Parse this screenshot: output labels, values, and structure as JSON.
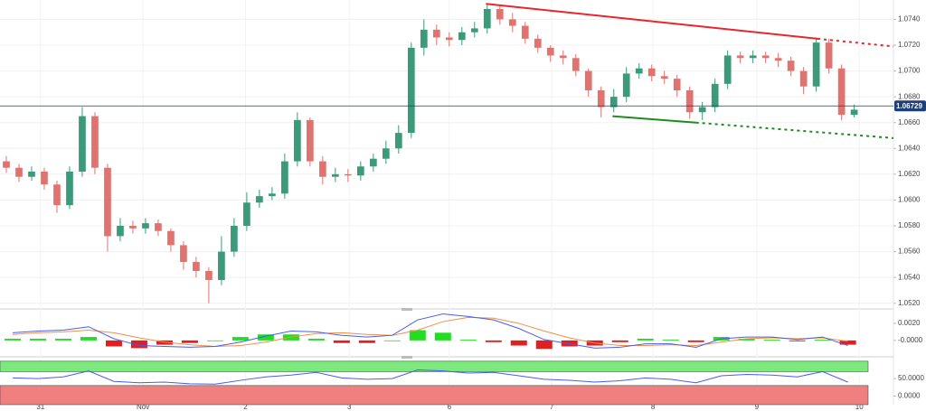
{
  "chart_data": [
    {
      "type": "candlestick",
      "x": [
        0.5,
        1.5,
        2.5,
        3.5,
        4.5,
        5.5,
        6.5,
        7.5,
        8.5,
        9.5,
        10.5,
        11.5,
        12.5,
        13.5,
        14.5,
        15.5,
        16.5,
        17.5,
        18.5,
        19.5,
        20.5,
        21.5,
        22.5,
        23.5,
        24.5,
        25.5,
        26.5,
        27.5,
        28.5,
        29.5,
        30.5,
        31.5,
        32.5,
        33.5,
        34.5,
        35.5,
        36.5,
        37.5,
        38.5,
        39.5,
        40.5,
        41.5,
        42.5,
        43.5,
        44.5,
        45.5,
        46.5,
        47.5,
        48.5,
        49.5,
        50.5,
        51.5,
        52.5,
        53.5,
        54.5,
        55.5,
        56.5,
        57.5,
        58.5,
        59.5,
        60.5,
        61.5,
        62.5,
        63.5,
        64.5,
        65.5,
        66.5,
        67.5
      ],
      "open": [
        1.063,
        1.0625,
        1.0618,
        1.0622,
        1.0612,
        1.0596,
        1.0622,
        1.0665,
        1.0625,
        1.0572,
        1.058,
        1.0578,
        1.0582,
        1.0576,
        1.0565,
        1.0552,
        1.0545,
        1.0538,
        1.056,
        1.058,
        1.0598,
        1.0603,
        1.0605,
        1.063,
        1.0662,
        1.063,
        1.0618,
        1.062,
        1.0619,
        1.0626,
        1.0632,
        1.064,
        1.0652,
        1.0718,
        1.0732,
        1.0726,
        1.0724,
        1.073,
        1.0733,
        1.0748,
        1.074,
        1.0735,
        1.0725,
        1.0718,
        1.0712,
        1.071,
        1.07,
        1.0685,
        1.0672,
        1.068,
        1.0698,
        1.0702,
        1.0696,
        1.0694,
        1.0685,
        1.0668,
        1.0672,
        1.069,
        1.0712,
        1.071,
        1.0712,
        1.071,
        1.0708,
        1.07,
        1.0688,
        1.0722,
        1.0702,
        1.0666
      ],
      "high": [
        1.0634,
        1.0628,
        1.0626,
        1.0625,
        1.0615,
        1.0626,
        1.0672,
        1.0668,
        1.0628,
        1.0586,
        1.0584,
        1.0586,
        1.0585,
        1.0578,
        1.0568,
        1.0556,
        1.0548,
        1.0572,
        1.0586,
        1.0606,
        1.0608,
        1.061,
        1.0636,
        1.0668,
        1.0664,
        1.0634,
        1.0625,
        1.0624,
        1.063,
        1.0636,
        1.0646,
        1.0658,
        1.0722,
        1.074,
        1.0736,
        1.073,
        1.0734,
        1.0738,
        1.0752,
        1.0751,
        1.0745,
        1.0738,
        1.0728,
        1.072,
        1.0716,
        1.0713,
        1.0702,
        1.0688,
        1.0686,
        1.0703,
        1.0706,
        1.0705,
        1.07,
        1.0697,
        1.0688,
        1.0676,
        1.0694,
        1.0716,
        1.0715,
        1.0716,
        1.0715,
        1.0714,
        1.0711,
        1.0703,
        1.0726,
        1.0725,
        1.0705,
        1.0674
      ],
      "low": [
        1.0621,
        1.0614,
        1.0615,
        1.0608,
        1.059,
        1.0593,
        1.0618,
        1.062,
        1.056,
        1.0568,
        1.0574,
        1.0574,
        1.0572,
        1.056,
        1.0546,
        1.054,
        1.052,
        1.0534,
        1.0556,
        1.0576,
        1.0594,
        1.06,
        1.0601,
        1.0626,
        1.0626,
        1.0612,
        1.0614,
        1.0614,
        1.0615,
        1.0622,
        1.0628,
        1.0636,
        1.0648,
        1.0712,
        1.072,
        1.0719,
        1.072,
        1.0726,
        1.0729,
        1.0736,
        1.073,
        1.0721,
        1.0714,
        1.0707,
        1.0705,
        1.0696,
        1.068,
        1.0664,
        1.0668,
        1.0676,
        1.0694,
        1.0692,
        1.069,
        1.068,
        1.0663,
        1.0662,
        1.0668,
        1.0686,
        1.0706,
        1.0706,
        1.0706,
        1.0703,
        1.0696,
        1.0682,
        1.0684,
        1.0698,
        1.0662,
        1.0664
      ],
      "close": [
        1.0625,
        1.0618,
        1.0622,
        1.0612,
        1.0596,
        1.0622,
        1.0665,
        1.0625,
        1.0572,
        1.058,
        1.0578,
        1.0582,
        1.0576,
        1.0565,
        1.0552,
        1.0545,
        1.0538,
        1.056,
        1.058,
        1.0598,
        1.0603,
        1.0605,
        1.063,
        1.0662,
        1.063,
        1.0618,
        1.062,
        1.0619,
        1.0626,
        1.0632,
        1.064,
        1.0652,
        1.0718,
        1.0732,
        1.0726,
        1.0724,
        1.073,
        1.0733,
        1.0748,
        1.074,
        1.0735,
        1.0725,
        1.0718,
        1.0712,
        1.071,
        1.07,
        1.0685,
        1.0672,
        1.068,
        1.0698,
        1.0702,
        1.0696,
        1.0694,
        1.0685,
        1.0668,
        1.0672,
        1.069,
        1.0712,
        1.071,
        1.0712,
        1.071,
        1.0708,
        1.07,
        1.0688,
        1.0722,
        1.0702,
        1.0666,
        1.067
      ],
      "up_color": "#3a9a7a",
      "down_color": "#e0736f",
      "xlim": [
        0,
        70.6
      ],
      "xticks": [
        {
          "value": 3.2,
          "label": "31"
        },
        {
          "value": 11.3,
          "label": "Nov"
        },
        {
          "value": 19.4,
          "label": "2"
        },
        {
          "value": 27.6,
          "label": "3"
        },
        {
          "value": 35.5,
          "label": "6"
        },
        {
          "value": 43.6,
          "label": "7"
        },
        {
          "value": 51.6,
          "label": "8"
        },
        {
          "value": 59.8,
          "label": "9"
        },
        {
          "value": 67.9,
          "label": "10"
        }
      ],
      "ylim": [
        1.0517,
        1.0755
      ],
      "yticks": [
        {
          "value": 1.074,
          "label": "1.0740"
        },
        {
          "value": 1.072,
          "label": "1.0720"
        },
        {
          "value": 1.07,
          "label": "1.0700"
        },
        {
          "value": 1.068,
          "label": "1.0680"
        },
        {
          "value": 1.066,
          "label": "1.0660"
        },
        {
          "value": 1.064,
          "label": "1.0640"
        },
        {
          "value": 1.062,
          "label": "1.0620"
        },
        {
          "value": 1.06,
          "label": "1.0600"
        },
        {
          "value": 1.058,
          "label": "1.0580"
        },
        {
          "value": 1.056,
          "label": "1.0560"
        },
        {
          "value": 1.054,
          "label": "1.0540"
        },
        {
          "value": 1.052,
          "label": "1.0520"
        }
      ],
      "last_price": 1.06729,
      "last_price_color": "#1f3f7a",
      "trendlines": [
        {
          "color": "#e8262b",
          "x": [
            38.4,
            64.6,
            70.6
          ],
          "y": [
            1.0752,
            1.0725,
            1.0719
          ]
        },
        {
          "color": "#1f8a1f",
          "x": [
            48.4,
            55.0,
            70.6
          ],
          "y": [
            1.0665,
            1.066,
            1.0648
          ]
        }
      ],
      "grid": true
    },
    {
      "type": "macd",
      "x": [
        1,
        3,
        5,
        7,
        9,
        11,
        13,
        15,
        17,
        19,
        21,
        23,
        25,
        27,
        29,
        31,
        33,
        35,
        37,
        39,
        41,
        43,
        45,
        47,
        49,
        51,
        53,
        55,
        57,
        59,
        61,
        63,
        65,
        67
      ],
      "macd": [
        0.0009,
        0.0011,
        0.0012,
        0.0016,
        0.0002,
        -0.0006,
        -0.0007,
        -0.0008,
        -0.0007,
        -0.0002,
        0.0005,
        0.0011,
        0.001,
        0.0006,
        0.0004,
        0.0006,
        0.0024,
        0.0031,
        0.0028,
        0.0024,
        0.0014,
        0.0001,
        -0.0004,
        -0.0009,
        -0.0008,
        -0.0004,
        -0.0004,
        -0.0008,
        0.0002,
        0.0004,
        0.0004,
        0.0001,
        0.0004,
        -0.0006
      ],
      "signal": [
        0.0007,
        0.0009,
        0.001,
        0.0012,
        0.0009,
        0.0003,
        -0.0002,
        -0.0005,
        -0.0007,
        -0.0006,
        -0.0002,
        0.0004,
        0.0008,
        0.0009,
        0.0007,
        0.0006,
        0.0012,
        0.0022,
        0.0027,
        0.0026,
        0.002,
        0.0011,
        0.0003,
        -0.0003,
        -0.0006,
        -0.0006,
        -0.0005,
        -0.0006,
        -0.0002,
        0.0002,
        0.0003,
        0.0002,
        0.0003,
        -0.0001
      ],
      "histogram": [
        0.0002,
        0.0002,
        0.0002,
        0.0004,
        -0.0007,
        -0.0009,
        -0.0005,
        -0.0003,
        0,
        0.0004,
        0.0007,
        0.0007,
        0.0002,
        -0.0003,
        -0.0003,
        0,
        0.0012,
        0.0009,
        0.0001,
        -0.0002,
        -0.0006,
        -0.001,
        -0.0007,
        -0.0006,
        -0.0002,
        0.0002,
        0.0001,
        -0.0002,
        0.0004,
        0.0002,
        0.0001,
        -0.0001,
        0.0001,
        -0.0005
      ],
      "macd_color": "#4a5cf0",
      "signal_color": "#f0914a",
      "up_color": "#22dd22",
      "down_color": "#e02020",
      "xlim": [
        0,
        70.6
      ],
      "ylim": [
        -0.0016,
        0.00358
      ],
      "yticks": [
        {
          "value": 0.002,
          "label": "0.0020"
        },
        {
          "value": 0,
          "label": "-0.0000"
        }
      ]
    },
    {
      "type": "rsi",
      "x": [
        1,
        3,
        5,
        7,
        9,
        11,
        13,
        15,
        17,
        19,
        21,
        23,
        25,
        27,
        29,
        31,
        33,
        35,
        37,
        39,
        41,
        43,
        45,
        47,
        49,
        51,
        53,
        55,
        57,
        59,
        61,
        63,
        65,
        67
      ],
      "values": [
        52,
        50,
        55,
        72,
        42,
        38,
        40,
        35,
        34,
        45,
        55,
        60,
        68,
        52,
        48,
        50,
        75,
        72,
        66,
        68,
        58,
        48,
        45,
        40,
        44,
        52,
        48,
        38,
        58,
        62,
        60,
        55,
        70,
        40
      ],
      "color": "#4a5cf0",
      "bands": [
        {
          "from": 70,
          "to": 100,
          "color": "#7de87d"
        },
        {
          "from": -25,
          "to": 30,
          "color": "#f07f7f"
        }
      ],
      "xlim": [
        0,
        70.6
      ],
      "ylim": [
        -25,
        107.5
      ],
      "yticks": [
        {
          "value": 50,
          "label": "50.0000"
        },
        {
          "value": 0,
          "label": "0.0000"
        }
      ]
    }
  ]
}
